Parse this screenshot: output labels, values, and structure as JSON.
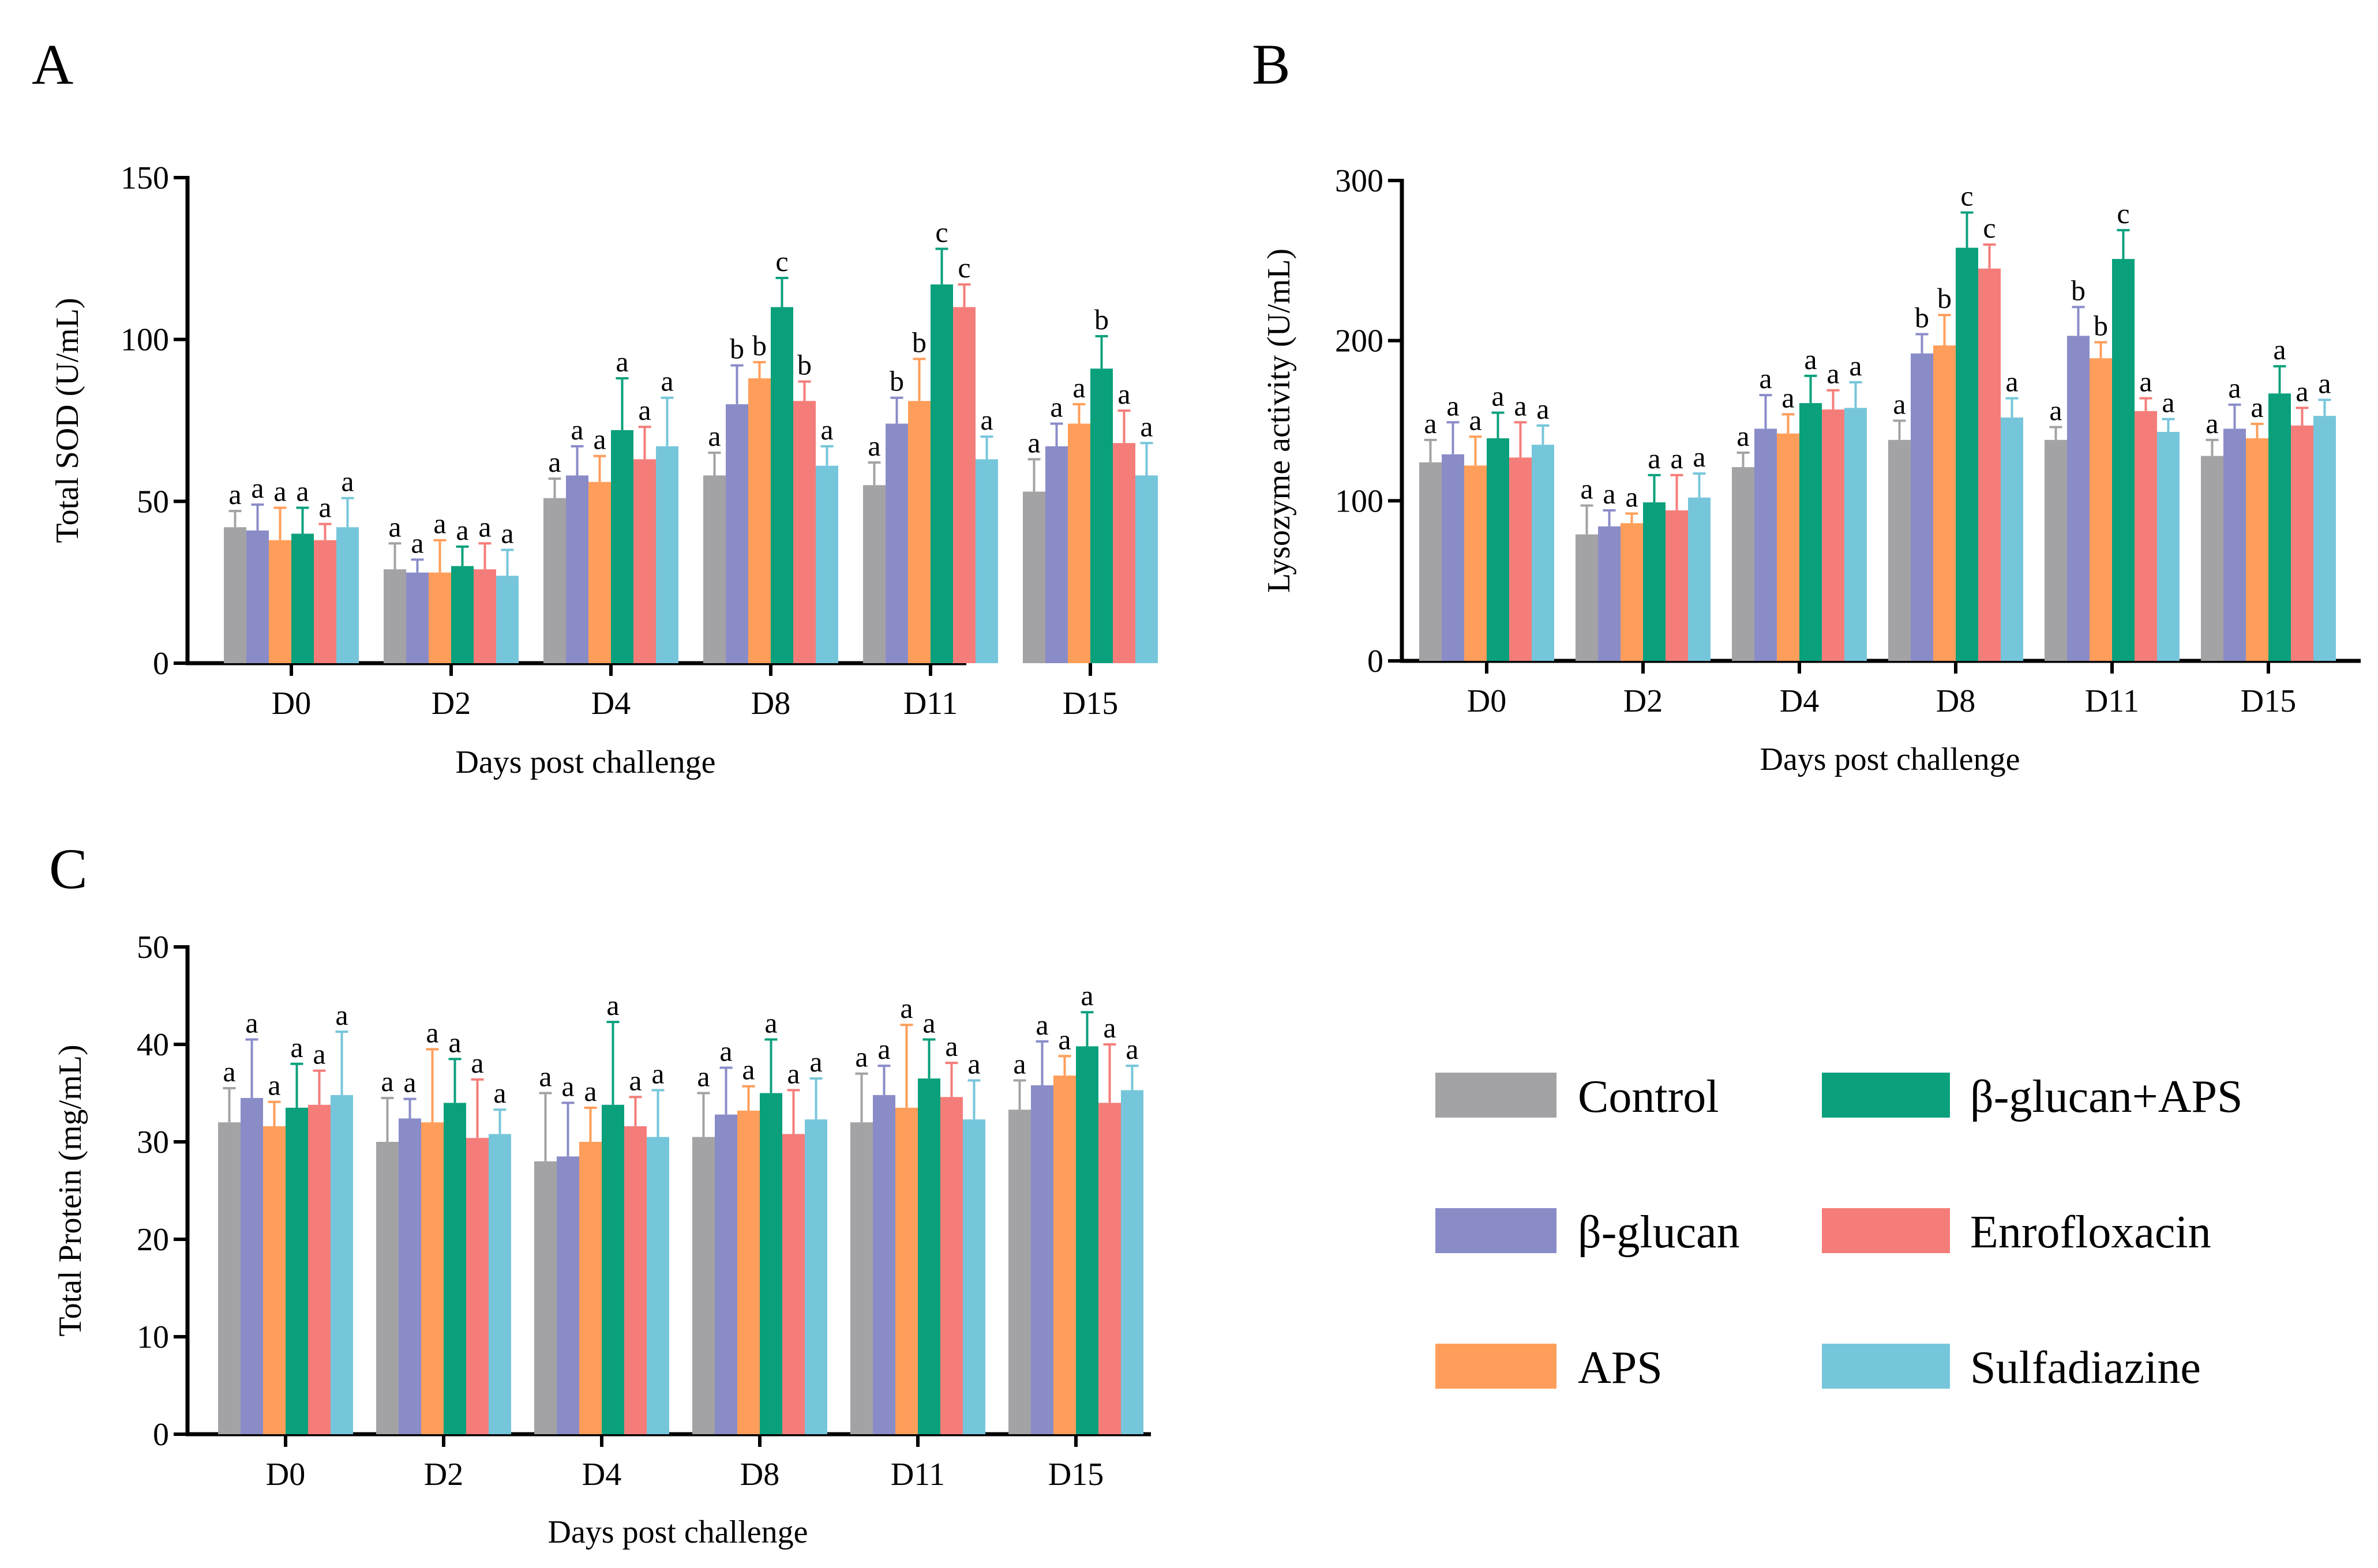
{
  "colors": {
    "Control": "#a3a3a6",
    "β-glucan": "#8a8cc8",
    "APS": "#ff9e5a",
    "β-glucan+APS": "#0aa07c",
    "Enrofloxacin": "#f47d7a",
    "Sulfadiazine": "#76c6db"
  },
  "legend": {
    "items": [
      "Control",
      "β-glucan+APS",
      "β-glucan",
      "Enrofloxacin",
      "APS",
      "Sulfadiazine"
    ]
  },
  "chart_data": [
    {
      "panel": "A",
      "type": "bar",
      "ylabel": "Total SOD (U/mL)",
      "xlabel": "Days post challenge",
      "ylim": [
        0,
        150
      ],
      "yticks": [
        0,
        50,
        100,
        150
      ],
      "categories": [
        "D0",
        "D2",
        "D4",
        "D8",
        "D11",
        "D15"
      ],
      "series": [
        {
          "name": "Control",
          "values": [
            42,
            29,
            51,
            58,
            55,
            53
          ],
          "errors": [
            5,
            8,
            6,
            7,
            7,
            10
          ],
          "letters": [
            "a",
            "a",
            "a",
            "a",
            "a",
            "a"
          ]
        },
        {
          "name": "β-glucan",
          "values": [
            41,
            28,
            58,
            80,
            74,
            67
          ],
          "errors": [
            8,
            4,
            9,
            12,
            8,
            7
          ],
          "letters": [
            "a",
            "a",
            "a",
            "b",
            "b",
            "a"
          ]
        },
        {
          "name": "APS",
          "values": [
            38,
            28,
            56,
            88,
            81,
            74
          ],
          "errors": [
            10,
            10,
            8,
            5,
            13,
            6
          ],
          "letters": [
            "a",
            "a",
            "a",
            "b",
            "b",
            "a"
          ]
        },
        {
          "name": "β-glucan+APS",
          "values": [
            40,
            30,
            72,
            110,
            117,
            91
          ],
          "errors": [
            8,
            6,
            16,
            9,
            11,
            10
          ],
          "letters": [
            "a",
            "a",
            "a",
            "c",
            "c",
            "b"
          ]
        },
        {
          "name": "Enrofloxacin",
          "values": [
            38,
            29,
            63,
            81,
            110,
            68
          ],
          "errors": [
            5,
            8,
            10,
            6,
            7,
            10
          ],
          "letters": [
            "a",
            "a",
            "a",
            "b",
            "c",
            "a"
          ]
        },
        {
          "name": "Sulfadiazine",
          "values": [
            42,
            27,
            67,
            61,
            63,
            58
          ],
          "errors": [
            9,
            8,
            15,
            6,
            7,
            10
          ],
          "letters": [
            "a",
            "a",
            "a",
            "a",
            "a",
            "a"
          ]
        }
      ]
    },
    {
      "panel": "B",
      "type": "bar",
      "ylabel": "Lysozyme activity  (U/mL)",
      "xlabel": "Days post challenge",
      "ylim": [
        0,
        300
      ],
      "yticks": [
        0,
        100,
        200,
        300
      ],
      "categories": [
        "D0",
        "D2",
        "D4",
        "D8",
        "D11",
        "D15"
      ],
      "series": [
        {
          "name": "Control",
          "values": [
            124,
            79,
            121,
            138,
            138,
            128
          ],
          "errors": [
            14,
            18,
            9,
            12,
            8,
            10
          ],
          "letters": [
            "a",
            "a",
            "a",
            "a",
            "a",
            "a"
          ]
        },
        {
          "name": "β-glucan",
          "values": [
            129,
            84,
            145,
            192,
            203,
            145
          ],
          "errors": [
            20,
            10,
            21,
            12,
            18,
            15
          ],
          "letters": [
            "a",
            "a",
            "a",
            "b",
            "b",
            "a"
          ]
        },
        {
          "name": "APS",
          "values": [
            122,
            86,
            142,
            197,
            189,
            139
          ],
          "errors": [
            18,
            6,
            12,
            19,
            10,
            9
          ],
          "letters": [
            "a",
            "a",
            "a",
            "b",
            "b",
            "a"
          ]
        },
        {
          "name": "β-glucan+APS",
          "values": [
            139,
            99,
            161,
            258,
            251,
            167
          ],
          "errors": [
            16,
            17,
            17,
            22,
            18,
            17
          ],
          "letters": [
            "a",
            "a",
            "a",
            "c",
            "c",
            "a"
          ]
        },
        {
          "name": "Enrofloxacin",
          "values": [
            127,
            94,
            157,
            245,
            156,
            147
          ],
          "errors": [
            22,
            22,
            12,
            15,
            8,
            11
          ],
          "letters": [
            "a",
            "a",
            "a",
            "c",
            "a",
            "a"
          ]
        },
        {
          "name": "Sulfadiazine",
          "values": [
            135,
            102,
            158,
            152,
            143,
            153
          ],
          "errors": [
            12,
            15,
            16,
            12,
            8,
            10
          ],
          "letters": [
            "a",
            "a",
            "a",
            "a",
            "a",
            "a"
          ]
        }
      ]
    },
    {
      "panel": "C",
      "type": "bar",
      "ylabel": "Total Protein (mg/mL)",
      "xlabel": "Days post challenge",
      "ylim": [
        0,
        50
      ],
      "yticks": [
        0,
        10,
        20,
        30,
        40,
        50
      ],
      "categories": [
        "D0",
        "D2",
        "D4",
        "D8",
        "D11",
        "D15"
      ],
      "series": [
        {
          "name": "Control",
          "values": [
            32,
            30,
            28,
            30.5,
            32,
            33.3
          ],
          "errors": [
            3.5,
            4.5,
            7,
            4.5,
            5,
            3
          ],
          "letters": [
            "a",
            "a",
            "a",
            "a",
            "a",
            "a"
          ]
        },
        {
          "name": "β-glucan",
          "values": [
            34.5,
            32.4,
            28.5,
            32.8,
            34.8,
            35.8
          ],
          "errors": [
            6,
            2,
            5.5,
            4.8,
            3,
            4.5
          ],
          "letters": [
            "a",
            "a",
            "a",
            "a",
            "a",
            "a"
          ]
        },
        {
          "name": "APS",
          "values": [
            31.6,
            32,
            30,
            33.2,
            33.5,
            36.8
          ],
          "errors": [
            2.5,
            7.5,
            3.5,
            2.5,
            8.5,
            2
          ],
          "letters": [
            "a",
            "a",
            "a",
            "a",
            "a",
            "a"
          ]
        },
        {
          "name": "β-glucan+APS",
          "values": [
            33.5,
            34,
            33.8,
            35,
            36.5,
            39.8
          ],
          "errors": [
            4.5,
            4.5,
            8.5,
            5.5,
            4,
            3.5
          ],
          "letters": [
            "a",
            "a",
            "a",
            "a",
            "a",
            "a"
          ]
        },
        {
          "name": "Enrofloxacin",
          "values": [
            33.8,
            30.4,
            31.6,
            30.8,
            34.6,
            34
          ],
          "errors": [
            3.5,
            6,
            3,
            4.5,
            3.5,
            6
          ],
          "letters": [
            "a",
            "a",
            "a",
            "a",
            "a",
            "a"
          ]
        },
        {
          "name": "Sulfadiazine",
          "values": [
            34.8,
            30.8,
            30.5,
            32.3,
            32.3,
            35.3
          ],
          "errors": [
            6.5,
            2.5,
            4.8,
            4.2,
            4,
            2.5
          ],
          "letters": [
            "a",
            "a",
            "a",
            "a",
            "a",
            "a"
          ]
        }
      ]
    }
  ],
  "panel_labels": [
    "A",
    "B",
    "C"
  ]
}
